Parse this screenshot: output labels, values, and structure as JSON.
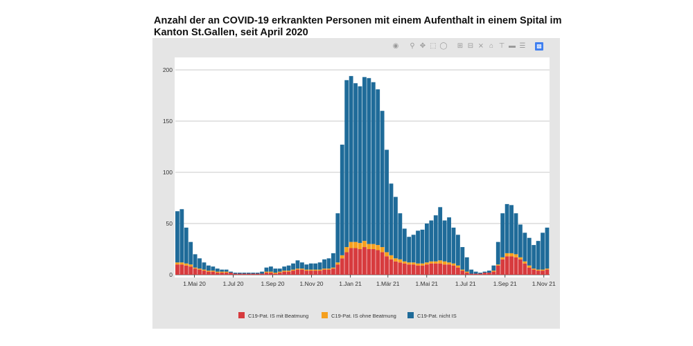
{
  "chart_data": {
    "type": "bar",
    "stacked": true,
    "title": "Anzahl der an COVID-19 erkrankten Personen mit einem Aufenthalt in einem Spital im Kanton St.Gallen, seit April 2020",
    "xlabel": "",
    "ylabel": "",
    "ylim": [
      0,
      210
    ],
    "y_ticks": [
      0,
      50,
      100,
      150,
      200
    ],
    "x_ticks": [
      "1.Mai 20",
      "1.Jul 20",
      "1.Sep 20",
      "1.Nov 20",
      "1.Jan 21",
      "1.Mär 21",
      "1.Mai 21",
      "1.Jul 21",
      "1.Sep 21",
      "1.Nov 21"
    ],
    "grid": true,
    "legend_position": "bottom",
    "x_start": "2020-04-01",
    "x_end": "2021-11-10",
    "series": [
      {
        "name": "C19-Pat. IS mit Beatmung",
        "color": "#d73b3e",
        "values": [
          10,
          10,
          9,
          8,
          6,
          5,
          4,
          3,
          3,
          2,
          2,
          2,
          2,
          1,
          1,
          1,
          1,
          1,
          1,
          1,
          2,
          2,
          1,
          2,
          3,
          3,
          4,
          5,
          5,
          4,
          4,
          4,
          4,
          5,
          5,
          6,
          10,
          16,
          22,
          26,
          26,
          25,
          27,
          25,
          25,
          24,
          22,
          18,
          15,
          13,
          12,
          11,
          10,
          10,
          9,
          9,
          10,
          11,
          11,
          11,
          10,
          10,
          9,
          7,
          4,
          2,
          1,
          1,
          1,
          2,
          2,
          3,
          9,
          15,
          18,
          18,
          17,
          15,
          11,
          7,
          5,
          4,
          4,
          5
        ]
      },
      {
        "name": "C19-Pat. IS ohne Beatmung",
        "color": "#f5a01f",
        "values": [
          2,
          2,
          2,
          2,
          1,
          1,
          1,
          1,
          1,
          1,
          1,
          1,
          0,
          0,
          0,
          0,
          0,
          0,
          0,
          0,
          1,
          1,
          1,
          1,
          1,
          1,
          1,
          1,
          1,
          1,
          1,
          1,
          1,
          1,
          1,
          1,
          2,
          3,
          5,
          6,
          6,
          6,
          6,
          5,
          5,
          5,
          5,
          4,
          4,
          3,
          3,
          2,
          2,
          2,
          2,
          2,
          2,
          2,
          2,
          3,
          3,
          2,
          2,
          2,
          1,
          1,
          0,
          0,
          0,
          0,
          0,
          1,
          1,
          2,
          3,
          3,
          3,
          2,
          2,
          2,
          1,
          1,
          1,
          1
        ]
      },
      {
        "name": "C19-Pat. nicht IS",
        "color": "#1f6b99",
        "values": [
          50,
          52,
          35,
          22,
          13,
          10,
          7,
          5,
          4,
          3,
          2,
          2,
          1,
          1,
          1,
          1,
          1,
          1,
          1,
          2,
          4,
          5,
          4,
          3,
          4,
          5,
          6,
          8,
          6,
          5,
          6,
          6,
          7,
          9,
          10,
          14,
          48,
          108,
          163,
          162,
          155,
          153,
          160,
          162,
          158,
          152,
          133,
          100,
          70,
          60,
          45,
          32,
          25,
          27,
          32,
          33,
          38,
          40,
          45,
          52,
          40,
          44,
          35,
          30,
          22,
          14,
          4,
          2,
          1,
          1,
          2,
          5,
          22,
          43,
          48,
          47,
          40,
          32,
          28,
          27,
          23,
          28,
          36,
          40
        ]
      }
    ]
  }
}
